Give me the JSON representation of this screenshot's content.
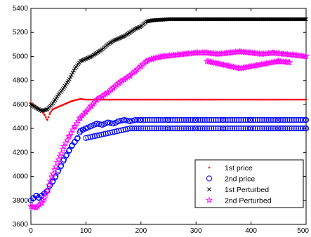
{
  "chart_data": {
    "type": "scatter",
    "title": "",
    "xlabel": "",
    "ylabel": "",
    "xlim": [
      0,
      500
    ],
    "ylim": [
      3600,
      5400
    ],
    "x_ticks": [
      "0",
      "100",
      "200",
      "300",
      "400",
      "500"
    ],
    "y_ticks": [
      "3600",
      "3800",
      "4000",
      "4200",
      "4400",
      "4600",
      "4800",
      "5000",
      "5200",
      "5400"
    ],
    "grid": false,
    "legend_position": "bottom-right",
    "series": [
      {
        "name": "1st price",
        "marker": "dot",
        "color": "#ff0000",
        "points": [
          [
            0,
            4610
          ],
          [
            10,
            4575
          ],
          [
            20,
            4545
          ],
          [
            25,
            4510
          ],
          [
            30,
            4470
          ],
          [
            35,
            4530
          ],
          [
            40,
            4560
          ],
          [
            50,
            4580
          ],
          [
            60,
            4600
          ],
          [
            70,
            4620
          ],
          [
            80,
            4635
          ],
          [
            90,
            4645
          ],
          [
            100,
            4640
          ],
          [
            150,
            4640
          ],
          [
            200,
            4640
          ],
          [
            300,
            4640
          ],
          [
            400,
            4640
          ],
          [
            500,
            4640
          ]
        ]
      },
      {
        "name": "2nd price",
        "marker": "circle",
        "color": "#0000ff",
        "points": [
          [
            0,
            3800
          ],
          [
            5,
            3820
          ],
          [
            10,
            3840
          ],
          [
            15,
            3820
          ],
          [
            20,
            3840
          ],
          [
            25,
            3860
          ],
          [
            30,
            3880
          ],
          [
            35,
            3930
          ],
          [
            40,
            3960
          ],
          [
            45,
            4000
          ],
          [
            50,
            4050
          ],
          [
            55,
            4090
          ],
          [
            60,
            4140
          ],
          [
            65,
            4180
          ],
          [
            70,
            4220
          ],
          [
            75,
            4260
          ],
          [
            80,
            4290
          ],
          [
            85,
            4320
          ],
          [
            90,
            4380
          ],
          [
            95,
            4390
          ],
          [
            100,
            4400
          ],
          [
            110,
            4420
          ],
          [
            120,
            4440
          ],
          [
            130,
            4430
          ],
          [
            140,
            4450
          ],
          [
            150,
            4440
          ],
          [
            160,
            4460
          ],
          [
            170,
            4470
          ],
          [
            180,
            4460
          ],
          [
            190,
            4470
          ],
          [
            200,
            4470
          ],
          [
            250,
            4470
          ],
          [
            300,
            4470
          ],
          [
            350,
            4470
          ],
          [
            400,
            4470
          ],
          [
            450,
            4470
          ],
          [
            500,
            4470
          ],
          [
            100,
            4320
          ],
          [
            120,
            4340
          ],
          [
            140,
            4360
          ],
          [
            160,
            4380
          ],
          [
            180,
            4400
          ],
          [
            200,
            4400
          ],
          [
            250,
            4400
          ],
          [
            300,
            4400
          ],
          [
            350,
            4400
          ],
          [
            400,
            4400
          ],
          [
            450,
            4400
          ],
          [
            500,
            4400
          ]
        ]
      },
      {
        "name": "1st Perturbed",
        "marker": "x",
        "color": "#000000",
        "points": [
          [
            0,
            4600
          ],
          [
            10,
            4570
          ],
          [
            20,
            4545
          ],
          [
            30,
            4560
          ],
          [
            40,
            4610
          ],
          [
            50,
            4680
          ],
          [
            60,
            4740
          ],
          [
            70,
            4810
          ],
          [
            80,
            4900
          ],
          [
            90,
            4960
          ],
          [
            100,
            4980
          ],
          [
            110,
            5000
          ],
          [
            120,
            5030
          ],
          [
            130,
            5060
          ],
          [
            140,
            5100
          ],
          [
            150,
            5130
          ],
          [
            160,
            5150
          ],
          [
            170,
            5170
          ],
          [
            180,
            5200
          ],
          [
            190,
            5230
          ],
          [
            200,
            5250
          ],
          [
            210,
            5290
          ],
          [
            220,
            5300
          ],
          [
            250,
            5310
          ],
          [
            300,
            5310
          ],
          [
            350,
            5310
          ],
          [
            400,
            5310
          ],
          [
            450,
            5310
          ],
          [
            500,
            5310
          ]
        ]
      },
      {
        "name": "2nd Perturbed",
        "marker": "star",
        "color": "#ff00ff",
        "points": [
          [
            0,
            3750
          ],
          [
            10,
            3740
          ],
          [
            20,
            3780
          ],
          [
            25,
            3820
          ],
          [
            30,
            3880
          ],
          [
            35,
            3960
          ],
          [
            40,
            4020
          ],
          [
            45,
            4080
          ],
          [
            50,
            4140
          ],
          [
            55,
            4190
          ],
          [
            60,
            4250
          ],
          [
            70,
            4340
          ],
          [
            80,
            4420
          ],
          [
            90,
            4490
          ],
          [
            100,
            4540
          ],
          [
            110,
            4590
          ],
          [
            120,
            4640
          ],
          [
            130,
            4670
          ],
          [
            140,
            4700
          ],
          [
            150,
            4740
          ],
          [
            160,
            4780
          ],
          [
            170,
            4810
          ],
          [
            180,
            4840
          ],
          [
            190,
            4880
          ],
          [
            200,
            4920
          ],
          [
            210,
            4960
          ],
          [
            220,
            4980
          ],
          [
            240,
            5000
          ],
          [
            260,
            5010
          ],
          [
            280,
            5020
          ],
          [
            300,
            5030
          ],
          [
            320,
            5030
          ],
          [
            340,
            5020
          ],
          [
            360,
            5030
          ],
          [
            380,
            5040
          ],
          [
            400,
            5030
          ],
          [
            420,
            5020
          ],
          [
            440,
            5030
          ],
          [
            460,
            5020
          ],
          [
            480,
            5010
          ],
          [
            500,
            5000
          ],
          [
            320,
            4960
          ],
          [
            380,
            4900
          ],
          [
            450,
            4960
          ],
          [
            470,
            4950
          ]
        ]
      }
    ]
  }
}
